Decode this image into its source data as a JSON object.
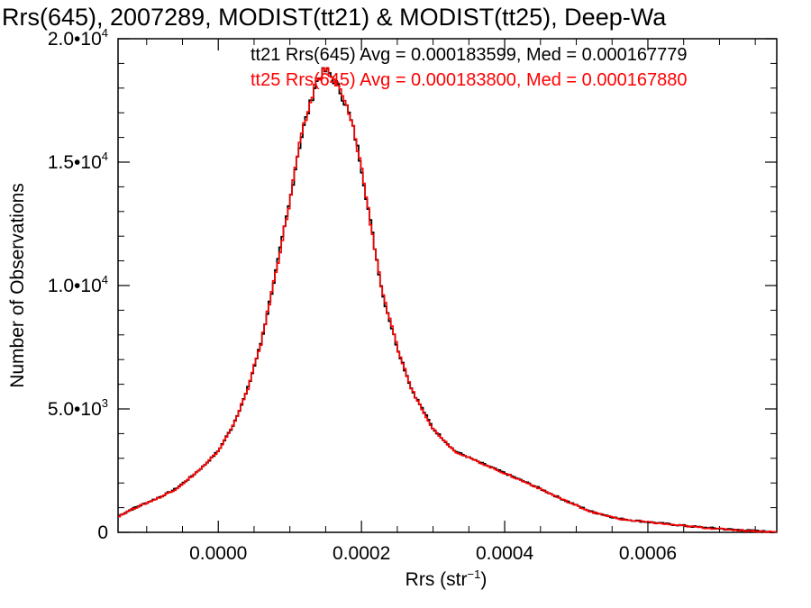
{
  "chart_data": {
    "type": "line",
    "title": "Rrs(645), 2007289, MODIST(tt21) & MODIST(tt25), Deep-Wa",
    "xlabel": "Rrs (str",
    "xlabel_sup": "−1",
    "ylabel": "Number of Observations",
    "xlim": [
      -0.00014,
      0.00078
    ],
    "ylim": [
      0,
      20000
    ],
    "x_ticks": [
      0.0,
      0.0002,
      0.0004,
      0.0006
    ],
    "x_tick_labels": [
      "0.0000",
      "0.0002",
      "0.0004",
      "0.0006"
    ],
    "y_ticks": [
      0,
      5000,
      10000,
      15000,
      20000
    ],
    "y_tick_labels": [
      {
        "mant": "0",
        "exp": ""
      },
      {
        "mant": "5.0•10",
        "exp": "3"
      },
      {
        "mant": "1.0•10",
        "exp": "4"
      },
      {
        "mant": "1.5•10",
        "exp": "4"
      },
      {
        "mant": "2.0•10",
        "exp": "4"
      }
    ],
    "grid": false,
    "legend_position": "top-right",
    "series": [
      {
        "name": "tt21 Rrs(645) Avg = 0.000183599, Med = 0.000167779",
        "color": "#000000",
        "style": "step",
        "x": [
          -0.00014,
          -0.00012,
          -0.0001,
          -8e-05,
          -6e-05,
          -4e-05,
          -2e-05,
          0.0,
          2e-05,
          4e-05,
          6e-05,
          8e-05,
          0.0001,
          0.00011,
          0.00012,
          0.00013,
          0.000135,
          0.00014,
          0.000145,
          0.00015,
          0.000155,
          0.00016,
          0.00017,
          0.00018,
          0.00019,
          0.0002,
          0.00021,
          0.00022,
          0.00023,
          0.00025,
          0.00027,
          0.0003,
          0.00033,
          0.00036,
          0.0004,
          0.00044,
          0.00048,
          0.00052,
          0.00056,
          0.0006,
          0.00064,
          0.00068,
          0.00072,
          0.00076,
          0.00078
        ],
        "y": [
          650,
          950,
          1200,
          1450,
          1750,
          2200,
          2700,
          3300,
          4300,
          5700,
          7700,
          10500,
          13400,
          15200,
          16500,
          17500,
          18100,
          18400,
          18600,
          18700,
          18600,
          18400,
          17900,
          17200,
          16200,
          14800,
          13000,
          11300,
          9600,
          7500,
          5800,
          4200,
          3300,
          2900,
          2400,
          1900,
          1350,
          850,
          550,
          420,
          300,
          190,
          110,
          40,
          20
        ]
      },
      {
        "name": "tt25 Rrs(645) Avg = 0.000183800, Med = 0.000167880",
        "color": "#ff0000",
        "style": "step",
        "x": [
          -0.00014,
          -0.00012,
          -0.0001,
          -8e-05,
          -6e-05,
          -4e-05,
          -2e-05,
          0.0,
          2e-05,
          4e-05,
          6e-05,
          8e-05,
          0.0001,
          0.00011,
          0.00012,
          0.00013,
          0.000135,
          0.00014,
          0.000145,
          0.00015,
          0.000155,
          0.00016,
          0.00017,
          0.00018,
          0.00019,
          0.0002,
          0.00021,
          0.00022,
          0.00023,
          0.00025,
          0.00027,
          0.0003,
          0.00033,
          0.00036,
          0.0004,
          0.00044,
          0.00048,
          0.00052,
          0.00056,
          0.0006,
          0.00064,
          0.00068,
          0.00072,
          0.00076,
          0.00078
        ],
        "y": [
          640,
          940,
          1190,
          1440,
          1740,
          2190,
          2690,
          3290,
          4290,
          5690,
          7690,
          10490,
          13390,
          15190,
          16490,
          17520,
          18150,
          18450,
          18650,
          18750,
          18620,
          18380,
          17880,
          17190,
          16190,
          14790,
          12990,
          11290,
          9590,
          7490,
          5790,
          4190,
          3290,
          2890,
          2390,
          1890,
          1340,
          840,
          540,
          410,
          290,
          180,
          100,
          35,
          15
        ]
      }
    ]
  }
}
